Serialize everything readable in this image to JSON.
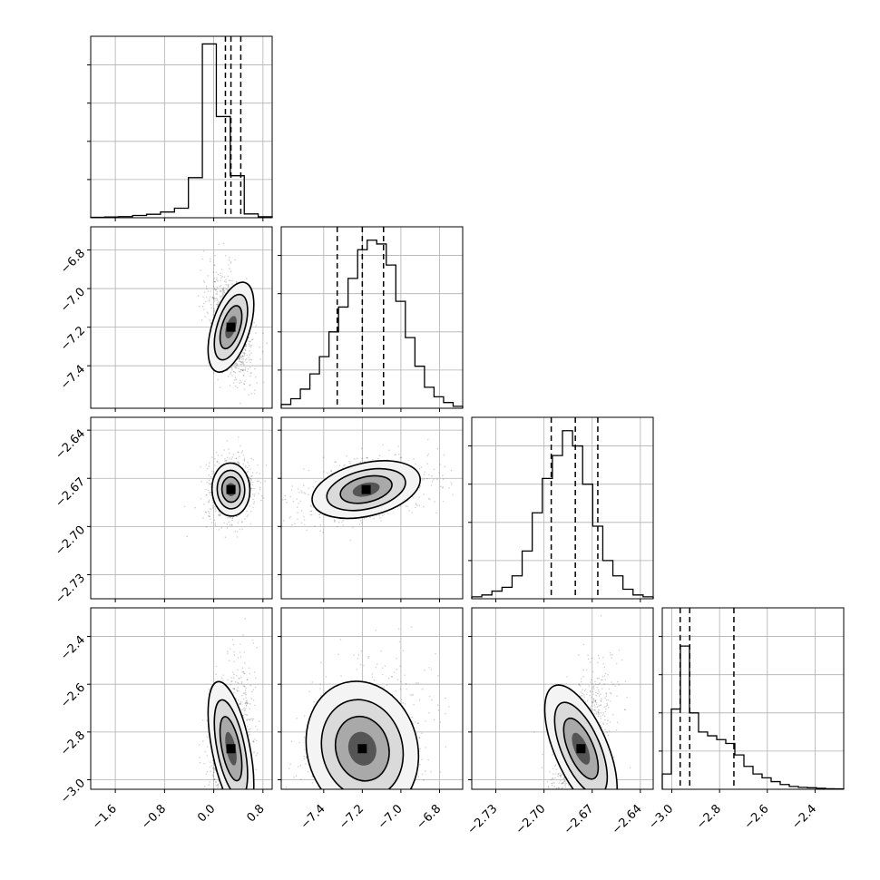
{
  "chart_data": {
    "type": "corner",
    "title": "",
    "grid": true,
    "parameters": [
      {
        "range": [
          -2.0,
          0.95
        ],
        "ticks": [
          "−1.6",
          "−0.8",
          "0.0",
          "0.8"
        ],
        "tick_values": [
          -1.6,
          -0.8,
          0.0,
          0.8
        ]
      },
      {
        "range": [
          -7.62,
          -6.68
        ],
        "ticks": [
          "−7.4",
          "−7.2",
          "−7.0",
          "−6.8"
        ],
        "tick_values": [
          -7.4,
          -7.2,
          -7.0,
          -6.8
        ]
      },
      {
        "range": [
          -2.745,
          -2.632
        ],
        "ticks": [
          "−2.73",
          "−2.70",
          "−2.67",
          "−2.64"
        ],
        "tick_values": [
          -2.73,
          -2.7,
          -2.67,
          -2.64
        ]
      },
      {
        "range": [
          -3.04,
          -2.28
        ],
        "ticks": [
          "−3.0",
          "−2.8",
          "−2.6",
          "−2.4"
        ],
        "tick_values": [
          -3.0,
          -2.8,
          -2.6,
          -2.4
        ]
      }
    ],
    "histograms": [
      {
        "quantiles": [
          0.19,
          0.28,
          0.44
        ],
        "counts": [
          0.002,
          0.004,
          0.006,
          0.012,
          0.018,
          0.03,
          0.05,
          0.21,
          0.91,
          0.53,
          0.22,
          0.02,
          0.005
        ]
      },
      {
        "quantiles": [
          -7.33,
          -7.2,
          -7.09
        ],
        "counts": [
          0.02,
          0.05,
          0.1,
          0.18,
          0.27,
          0.4,
          0.53,
          0.68,
          0.83,
          0.88,
          0.86,
          0.75,
          0.56,
          0.37,
          0.22,
          0.11,
          0.06,
          0.03,
          0.01
        ]
      },
      {
        "quantiles": [
          -2.6955,
          -2.6805,
          -2.6665
        ],
        "counts": [
          0.01,
          0.02,
          0.04,
          0.06,
          0.12,
          0.25,
          0.45,
          0.63,
          0.75,
          0.88,
          0.8,
          0.6,
          0.38,
          0.2,
          0.12,
          0.05,
          0.02,
          0.01
        ]
      },
      {
        "quantiles": [
          -2.965,
          -2.925,
          -2.74
        ],
        "counts": [
          0.08,
          0.42,
          0.75,
          0.4,
          0.3,
          0.28,
          0.26,
          0.24,
          0.18,
          0.12,
          0.08,
          0.06,
          0.04,
          0.025,
          0.015,
          0.01,
          0.008,
          0.005,
          0.003,
          0.002
        ]
      }
    ],
    "joint": [
      {
        "row": 1,
        "col": 0,
        "center": [
          0.28,
          -7.2
        ],
        "spread": [
          0.14,
          0.11
        ],
        "rho": -0.4
      },
      {
        "row": 2,
        "col": 0,
        "center": [
          0.28,
          -2.677
        ],
        "spread": [
          0.14,
          0.0075
        ],
        "rho": 0.05
      },
      {
        "row": 2,
        "col": 1,
        "center": [
          -7.18,
          -2.677
        ],
        "spread": [
          0.13,
          0.0075
        ],
        "rho": 0.3
      },
      {
        "row": 3,
        "col": 0,
        "center": [
          0.28,
          -2.87
        ],
        "spread": [
          0.14,
          0.13
        ],
        "rho": 0.25
      },
      {
        "row": 3,
        "col": 1,
        "center": [
          -7.2,
          -2.87
        ],
        "spread": [
          0.13,
          0.13
        ],
        "rho": 0.35
      },
      {
        "row": 3,
        "col": 2,
        "center": [
          -2.677,
          -2.87
        ],
        "spread": [
          0.0075,
          0.13
        ],
        "rho": 0.55
      }
    ]
  }
}
